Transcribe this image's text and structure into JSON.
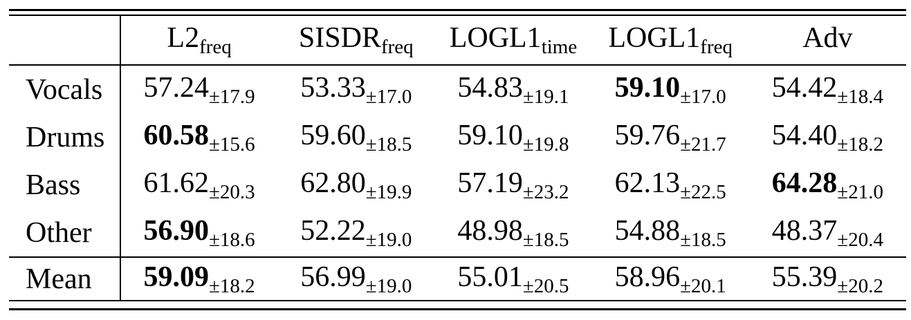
{
  "colors": {
    "background": "#ffffff",
    "text": "#000000",
    "rule": "#000000"
  },
  "table": {
    "corner_label": "",
    "header": {
      "cols": [
        {
          "base": "L2",
          "sub": "freq"
        },
        {
          "base": "SISDR",
          "sub": "freq"
        },
        {
          "base": "LOGL1",
          "sub": "time"
        },
        {
          "base": "LOGL1",
          "sub": "freq"
        },
        {
          "base": "Adv",
          "sub": ""
        }
      ]
    },
    "rows": [
      {
        "label": "Vocals",
        "cells": [
          {
            "v": "57.24",
            "sd": "±17.9",
            "bold": false
          },
          {
            "v": "53.33",
            "sd": "±17.0",
            "bold": false
          },
          {
            "v": "54.83",
            "sd": "±19.1",
            "bold": false
          },
          {
            "v": "59.10",
            "sd": "±17.0",
            "bold": true
          },
          {
            "v": "54.42",
            "sd": "±18.4",
            "bold": false
          }
        ]
      },
      {
        "label": "Drums",
        "cells": [
          {
            "v": "60.58",
            "sd": "±15.6",
            "bold": true
          },
          {
            "v": "59.60",
            "sd": "±18.5",
            "bold": false
          },
          {
            "v": "59.10",
            "sd": "±19.8",
            "bold": false
          },
          {
            "v": "59.76",
            "sd": "±21.7",
            "bold": false
          },
          {
            "v": "54.40",
            "sd": "±18.2",
            "bold": false
          }
        ]
      },
      {
        "label": "Bass",
        "cells": [
          {
            "v": "61.62",
            "sd": "±20.3",
            "bold": false
          },
          {
            "v": "62.80",
            "sd": "±19.9",
            "bold": false
          },
          {
            "v": "57.19",
            "sd": "±23.2",
            "bold": false
          },
          {
            "v": "62.13",
            "sd": "±22.5",
            "bold": false
          },
          {
            "v": "64.28",
            "sd": "±21.0",
            "bold": true
          }
        ]
      },
      {
        "label": "Other",
        "cells": [
          {
            "v": "56.90",
            "sd": "±18.6",
            "bold": true
          },
          {
            "v": "52.22",
            "sd": "±19.0",
            "bold": false
          },
          {
            "v": "48.98",
            "sd": "±18.5",
            "bold": false
          },
          {
            "v": "54.88",
            "sd": "±18.5",
            "bold": false
          },
          {
            "v": "48.37",
            "sd": "±20.4",
            "bold": false
          }
        ]
      },
      {
        "label": "Mean",
        "cells": [
          {
            "v": "59.09",
            "sd": "±18.2",
            "bold": true
          },
          {
            "v": "56.99",
            "sd": "±19.0",
            "bold": false
          },
          {
            "v": "55.01",
            "sd": "±20.5",
            "bold": false
          },
          {
            "v": "58.96",
            "sd": "±20.1",
            "bold": false
          },
          {
            "v": "55.39",
            "sd": "±20.2",
            "bold": false
          }
        ]
      }
    ]
  }
}
